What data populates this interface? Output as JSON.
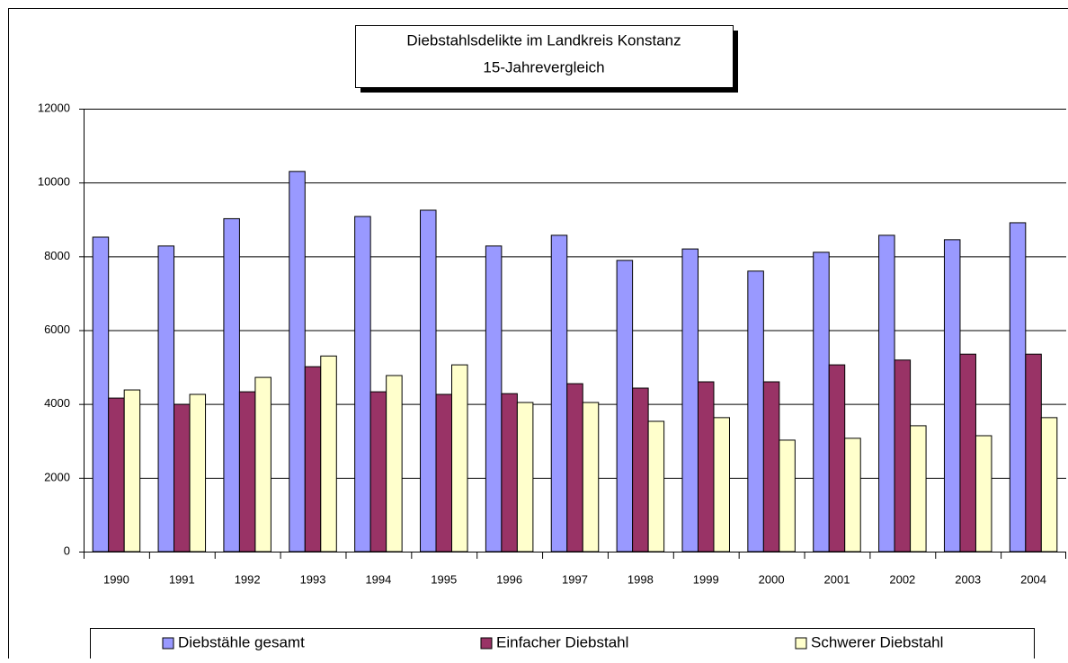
{
  "chart_data": {
    "type": "bar",
    "title": "Diebstahlsdelikte im Landkreis Konstanz",
    "subtitle": "15-Jahrevergleich",
    "categories": [
      "1990",
      "1991",
      "1992",
      "1993",
      "1994",
      "1995",
      "1996",
      "1997",
      "1998",
      "1999",
      "2000",
      "2001",
      "2002",
      "2003",
      "2004"
    ],
    "series": [
      {
        "name": "Diebstähle gesamt",
        "color": "#9999ff",
        "values": [
          8520,
          8280,
          9020,
          10300,
          9080,
          9250,
          8280,
          8570,
          7890,
          8200,
          7600,
          8110,
          8570,
          8450,
          8910
        ]
      },
      {
        "name": "Einfacher Diebstahl",
        "color": "#993366",
        "values": [
          4160,
          3990,
          4330,
          5010,
          4330,
          4260,
          4280,
          4550,
          4430,
          4600,
          4600,
          5060,
          5190,
          5350,
          5350
        ]
      },
      {
        "name": "Schwerer Diebstahl",
        "color": "#ffffcc",
        "values": [
          4380,
          4260,
          4720,
          5300,
          4770,
          5060,
          4040,
          4040,
          3530,
          3630,
          3020,
          3070,
          3410,
          3140,
          3630
        ]
      }
    ],
    "ylim": [
      0,
      12000
    ],
    "yticks": [
      0,
      2000,
      4000,
      6000,
      8000,
      10000,
      12000
    ],
    "grid": true,
    "legend": "bottom"
  }
}
